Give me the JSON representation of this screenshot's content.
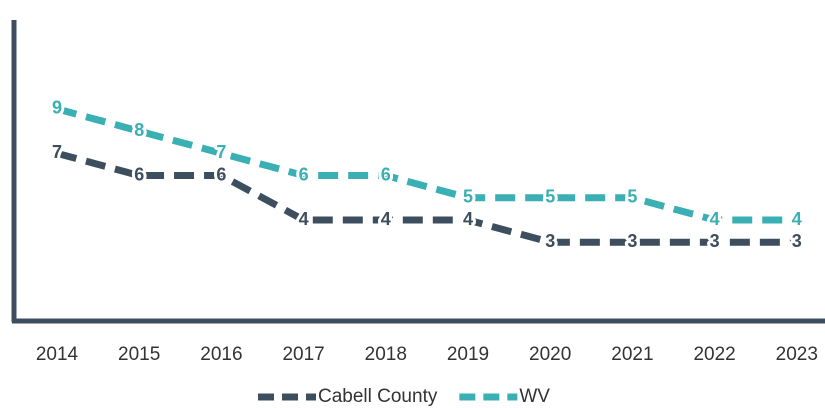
{
  "chart_data": {
    "type": "line",
    "categories": [
      "2014",
      "2015",
      "2016",
      "2017",
      "2018",
      "2019",
      "2020",
      "2021",
      "2022",
      "2023"
    ],
    "series": [
      {
        "name": "Cabell County",
        "color": "#3d4f5f",
        "values": [
          7,
          6,
          6,
          4,
          4,
          4,
          3,
          3,
          3,
          3
        ]
      },
      {
        "name": "WV",
        "color": "#3aafb4",
        "values": [
          9,
          8,
          7,
          6,
          6,
          5,
          5,
          5,
          4,
          4
        ]
      }
    ],
    "ylim": [
      -0.5,
      13
    ],
    "data_labels": true,
    "legend": "bottom"
  }
}
